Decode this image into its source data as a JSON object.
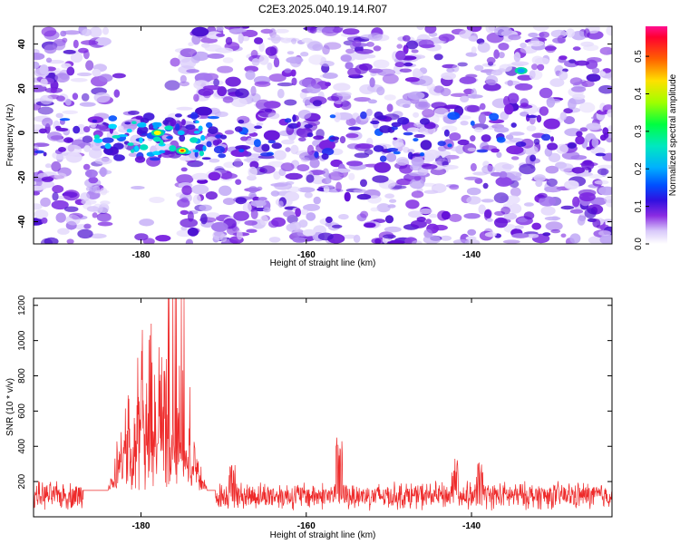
{
  "title": "C2E3.2025.040.19.14.R07",
  "colors": {
    "snr_line": "#ee2a2a",
    "background": "#ffffff",
    "frame": "#000000"
  },
  "chart_data": [
    {
      "type": "heatmap",
      "xlabel": "Height of straight line (km)",
      "ylabel": "Frequency (Hz)",
      "xlim": [
        -193,
        -123
      ],
      "ylim": [
        -50,
        48
      ],
      "x_ticks": [
        -180,
        -160,
        -140
      ],
      "y_ticks": [
        -40,
        -20,
        0,
        20,
        40
      ],
      "colormap": [
        "#ffffff",
        "#c8b4f8",
        "#8a2be2",
        "#4010d0",
        "#0000ff",
        "#00a0ff",
        "#00e0e0",
        "#00ff80",
        "#80ff00",
        "#ffff00",
        "#ff8000",
        "#ff0000",
        "#ff1080"
      ],
      "colorbar": {
        "label": "Normalized spectral amplitude",
        "range": [
          0,
          0.58
        ],
        "ticks": [
          0.0,
          0.1,
          0.2,
          0.3,
          0.4,
          0.5
        ]
      },
      "features": [
        {
          "x": -178,
          "y": 0,
          "peak_amplitude": 0.45
        },
        {
          "x": -175,
          "y": -8,
          "peak_amplitude": 0.5
        },
        {
          "x": -134,
          "y": 28,
          "peak_amplitude": 0.15
        }
      ],
      "grid": false
    },
    {
      "type": "line",
      "xlabel": "Height of straight line (km)",
      "ylabel": "SNR (10 * v/v)",
      "xlim": [
        -193,
        -123
      ],
      "ylim": [
        0,
        1240
      ],
      "x_ticks": [
        -180,
        -160,
        -140
      ],
      "y_ticks": [
        200,
        400,
        600,
        800,
        1000,
        1200
      ],
      "series": [
        {
          "x_range": [
            -193,
            -123
          ],
          "baseline_mean": 120,
          "baseline_spread": 90,
          "peak_region": [
            -182,
            -174
          ],
          "peak_max": 1240,
          "secondary_bumps": [
            {
              "x": -156,
              "y": 460
            },
            {
              "x": -169,
              "y": 330
            },
            {
              "x": -139,
              "y": 310
            },
            {
              "x": -142,
              "y": 330
            }
          ]
        }
      ],
      "grid": false
    }
  ]
}
